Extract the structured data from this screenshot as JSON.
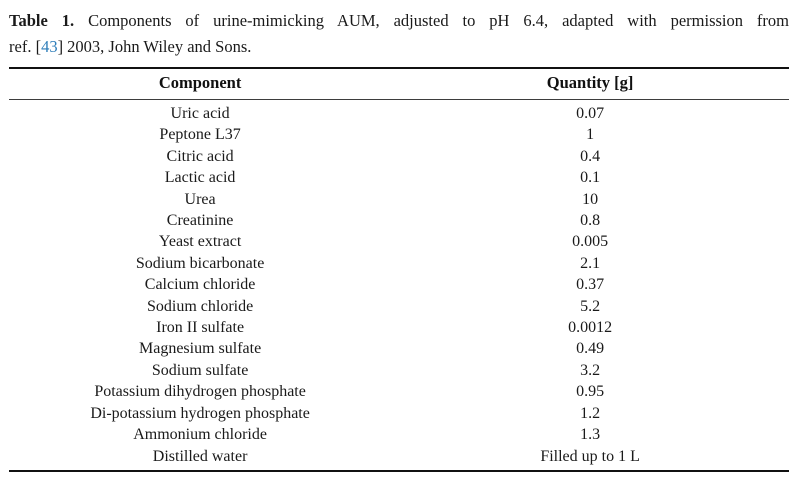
{
  "caption": {
    "label": "Table 1.",
    "line1_rest": "Components of urine-mimicking AUM, adjusted to pH 6.4, adapted with permission from",
    "line2_pre": "ref. [",
    "ref": "43",
    "line2_post": "] 2003, John Wiley and Sons."
  },
  "table": {
    "columns": [
      "Component",
      "Quantity [g]"
    ],
    "rows": [
      [
        "Uric acid",
        "0.07"
      ],
      [
        "Peptone L37",
        "1"
      ],
      [
        "Citric acid",
        "0.4"
      ],
      [
        "Lactic acid",
        "0.1"
      ],
      [
        "Urea",
        "10"
      ],
      [
        "Creatinine",
        "0.8"
      ],
      [
        "Yeast extract",
        "0.005"
      ],
      [
        "Sodium bicarbonate",
        "2.1"
      ],
      [
        "Calcium chloride",
        "0.37"
      ],
      [
        "Sodium chloride",
        "5.2"
      ],
      [
        "Iron II sulfate",
        "0.0012"
      ],
      [
        "Magnesium sulfate",
        "0.49"
      ],
      [
        "Sodium sulfate",
        "3.2"
      ],
      [
        "Potassium dihydrogen phosphate",
        "0.95"
      ],
      [
        "Di-potassium hydrogen phosphate",
        "1.2"
      ],
      [
        "Ammonium chloride",
        "1.3"
      ],
      [
        "Distilled water",
        "Filled up to 1 L"
      ]
    ]
  },
  "colors": {
    "text": "#1a1a1a",
    "link": "#2d7db9",
    "rule": "#111111"
  }
}
